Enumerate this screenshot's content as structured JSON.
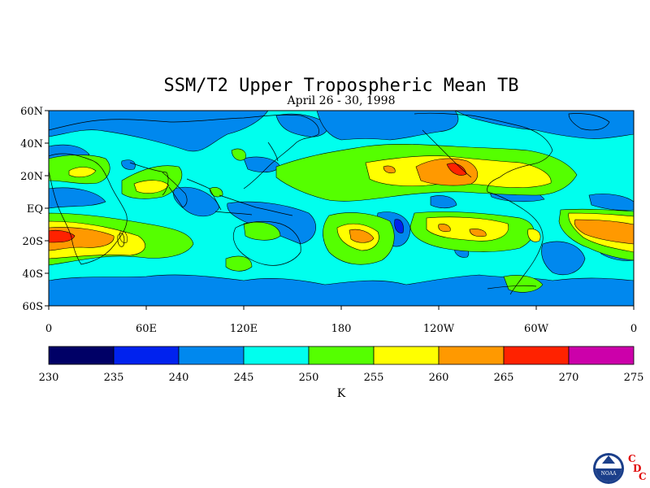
{
  "title": "SSM/T2 Upper Tropospheric Mean TB",
  "subtitle": "April 26 - 30, 1998",
  "lat_labels": [
    "60N",
    "40N",
    "20N",
    "EQ",
    "20S",
    "40S",
    "60S"
  ],
  "lon_labels": [
    "0",
    "60E",
    "120E",
    "180",
    "120W",
    "60W",
    "0"
  ],
  "colorbar": {
    "ticks": [
      "230",
      "235",
      "240",
      "245",
      "250",
      "255",
      "260",
      "265",
      "270",
      "275"
    ],
    "colors": [
      "#000066",
      "#0022ee",
      "#0088ee",
      "#00ffee",
      "#55ff00",
      "#ffff00",
      "#ff9900",
      "#ff2200",
      "#cc00aa"
    ],
    "unit": "K"
  },
  "logo": {
    "text": "NOAA",
    "letters": [
      "C",
      "D",
      "C"
    ]
  },
  "colors": {
    "lvl240": "#0088ee",
    "lvl245": "#00ffee",
    "lvl250": "#55ff00",
    "lvl255": "#ffff00",
    "lvl260": "#ff9900",
    "lvl265": "#ff2200",
    "lvl235": "#0022ee"
  }
}
